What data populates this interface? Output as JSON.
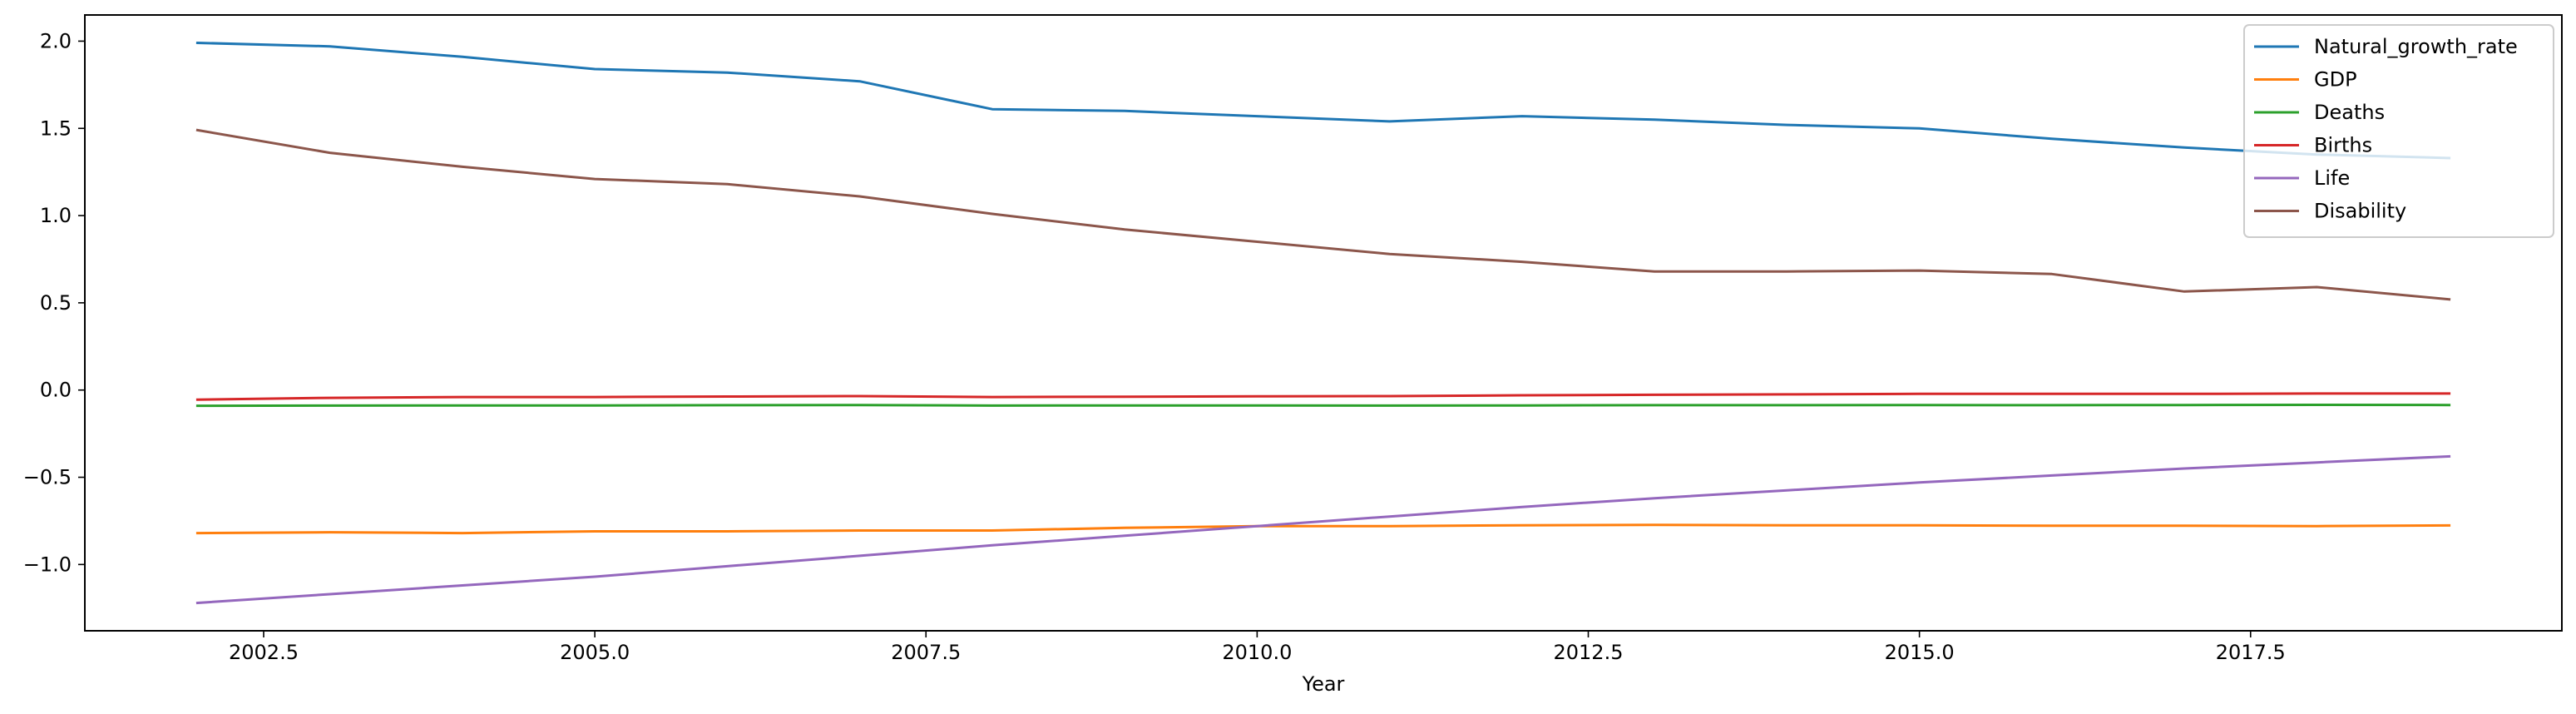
{
  "chart_data": {
    "type": "line",
    "xlabel": "Year",
    "ylabel": "",
    "xlim": [
      2001.15,
      2019.85
    ],
    "ylim": [
      -1.38,
      2.15
    ],
    "xticks": [
      2002.5,
      2005.0,
      2007.5,
      2010.0,
      2012.5,
      2015.0,
      2017.5
    ],
    "xtick_labels": [
      "2002.5",
      "2005.0",
      "2007.5",
      "2010.0",
      "2012.5",
      "2015.0",
      "2017.5"
    ],
    "yticks": [
      2.0,
      1.5,
      1.0,
      0.5,
      0.0,
      -0.5,
      -1.0
    ],
    "ytick_labels": [
      "2.0",
      "1.5",
      "1.0",
      "0.5",
      "0.0",
      "−0.5",
      "−1.0"
    ],
    "grid": false,
    "legend_position": "top-right",
    "x": [
      2002,
      2003,
      2004,
      2005,
      2006,
      2007,
      2008,
      2009,
      2010,
      2011,
      2012,
      2013,
      2014,
      2015,
      2016,
      2017,
      2018,
      2019
    ],
    "series": [
      {
        "name": "Natural_growth_rate",
        "color": "#1f77b4",
        "values": [
          1.99,
          1.97,
          1.91,
          1.84,
          1.82,
          1.77,
          1.61,
          1.6,
          1.57,
          1.54,
          1.57,
          1.55,
          1.52,
          1.5,
          1.44,
          1.39,
          1.35,
          1.33
        ]
      },
      {
        "name": "GDP",
        "color": "#ff7f0e",
        "values": [
          -0.82,
          -0.815,
          -0.82,
          -0.81,
          -0.81,
          -0.805,
          -0.805,
          -0.79,
          -0.78,
          -0.78,
          -0.775,
          -0.773,
          -0.775,
          -0.775,
          -0.778,
          -0.778,
          -0.78,
          -0.776
        ]
      },
      {
        "name": "Deaths",
        "color": "#2ca02c",
        "values": [
          -0.09,
          -0.089,
          -0.088,
          -0.088,
          -0.087,
          -0.086,
          -0.089,
          -0.088,
          -0.088,
          -0.089,
          -0.088,
          -0.087,
          -0.087,
          -0.086,
          -0.087,
          -0.086,
          -0.085,
          -0.086
        ]
      },
      {
        "name": "Births",
        "color": "#d62728",
        "values": [
          -0.055,
          -0.045,
          -0.04,
          -0.04,
          -0.037,
          -0.035,
          -0.04,
          -0.038,
          -0.036,
          -0.035,
          -0.03,
          -0.027,
          -0.025,
          -0.022,
          -0.022,
          -0.022,
          -0.02,
          -0.02
        ]
      },
      {
        "name": "Life",
        "color": "#9467bd",
        "values": [
          -1.22,
          -1.17,
          -1.12,
          -1.07,
          -1.01,
          -0.95,
          -0.89,
          -0.835,
          -0.78,
          -0.725,
          -0.67,
          -0.62,
          -0.575,
          -0.53,
          -0.49,
          -0.45,
          -0.415,
          -0.38
        ]
      },
      {
        "name": "Disability",
        "color": "#8c564b",
        "values": [
          1.49,
          1.36,
          1.28,
          1.21,
          1.18,
          1.11,
          1.01,
          0.92,
          0.85,
          0.78,
          0.735,
          0.68,
          0.68,
          0.685,
          0.665,
          0.565,
          0.59,
          0.52
        ]
      }
    ]
  }
}
